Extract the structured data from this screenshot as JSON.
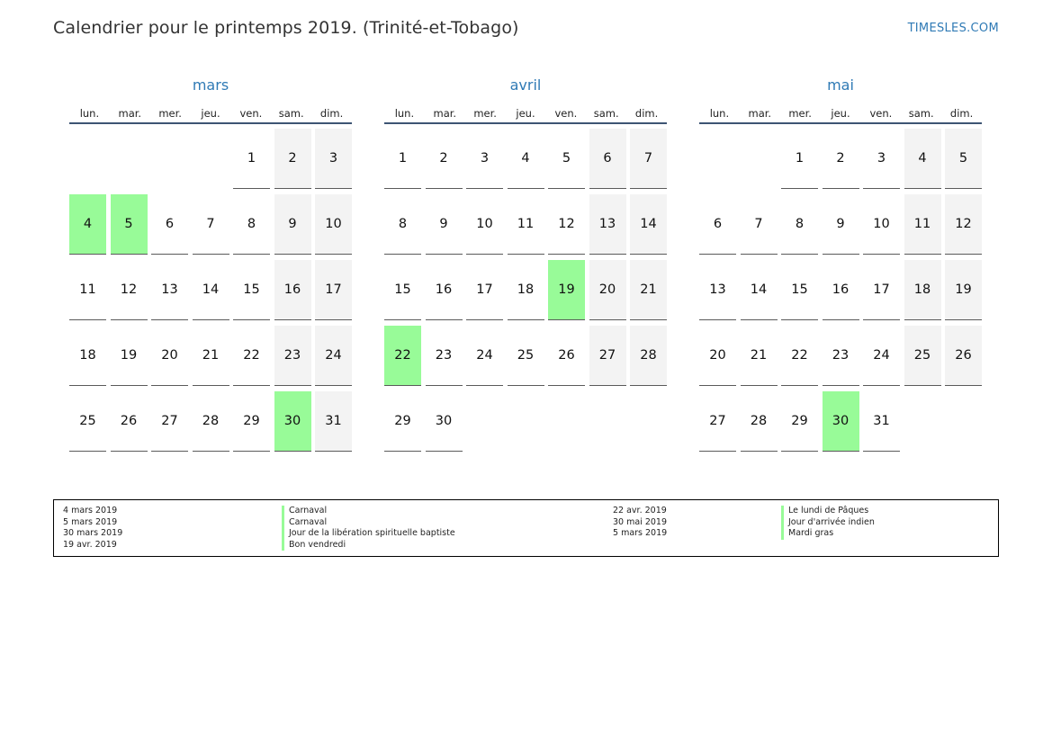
{
  "page": {
    "title": "Calendrier pour le printemps 2019. (Trinité-et-Tobago)",
    "brand": "TIMESLES.COM"
  },
  "colors": {
    "holiday": "#98fb98",
    "weekend": "#f3f3f3",
    "accent": "#2f7ab5"
  },
  "weekdays": [
    "lun.",
    "mar.",
    "mer.",
    "jeu.",
    "ven.",
    "sam.",
    "dim."
  ],
  "months": [
    {
      "name": "mars",
      "offset": 4,
      "days": 31,
      "holidays": [
        4,
        5,
        30
      ]
    },
    {
      "name": "avril",
      "offset": 0,
      "days": 30,
      "holidays": [
        19,
        22
      ]
    },
    {
      "name": "mai",
      "offset": 2,
      "days": 31,
      "holidays": [
        30
      ]
    }
  ],
  "legend": {
    "left_dates": [
      "4 mars 2019",
      "5 mars 2019",
      "30 mars 2019",
      "19 avr. 2019"
    ],
    "left_names": [
      "Carnaval",
      "Carnaval",
      "Jour de la libération spirituelle baptiste",
      "Bon vendredi"
    ],
    "right_dates": [
      "22 avr. 2019",
      "30 mai 2019",
      "5 mars 2019"
    ],
    "right_names": [
      "Le lundi de Pâques",
      "Jour d'arrivée indien",
      "Mardi gras"
    ]
  }
}
